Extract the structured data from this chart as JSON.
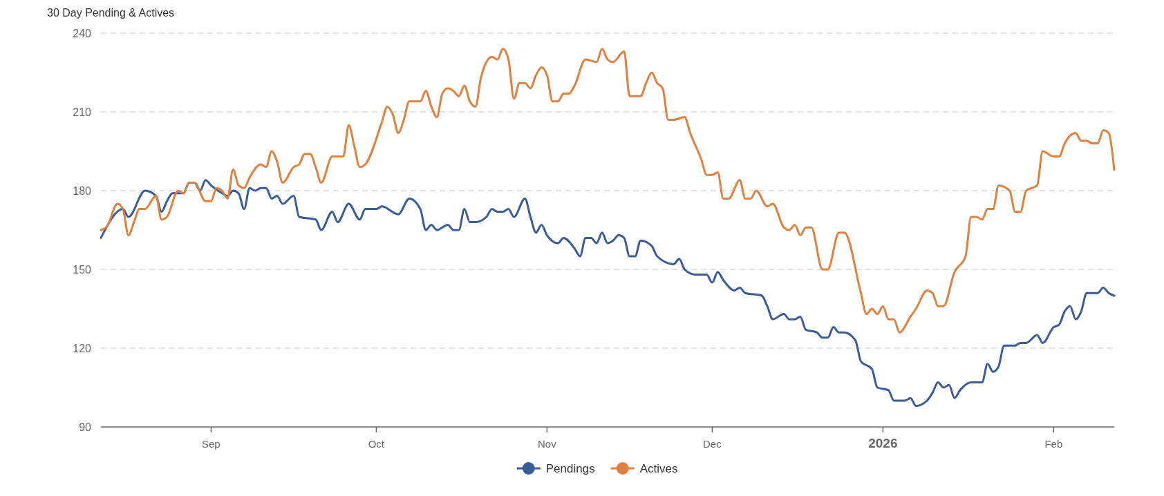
{
  "chart_data": {
    "type": "line",
    "title": "30 Day Pending & Actives",
    "xlim": [
      "2025-08-12",
      "2026-02-12"
    ],
    "xticks": [
      {
        "value": "2025-09-01",
        "label": "Sep"
      },
      {
        "value": "2025-10-01",
        "label": "Oct"
      },
      {
        "value": "2025-11-01",
        "label": "Nov"
      },
      {
        "value": "2025-12-01",
        "label": "Dec"
      },
      {
        "value": "2026-01-01",
        "label": "2026"
      },
      {
        "value": "2026-02-01",
        "label": "Feb"
      }
    ],
    "ylim": [
      90,
      240
    ],
    "yticks": [
      90,
      120,
      150,
      180,
      210,
      240
    ],
    "grid": "y",
    "legend": "bottom",
    "series": [
      {
        "name": "Pendings",
        "color": "#3a5a98",
        "x": [
          "2025-08-12",
          "2025-08-16",
          "2025-08-17",
          "2025-08-20",
          "2025-08-22",
          "2025-08-23",
          "2025-08-24",
          "2025-08-25",
          "2025-08-27",
          "2025-08-28",
          "2025-08-29",
          "2025-08-30",
          "2025-08-31",
          "2025-09-01",
          "2025-09-03",
          "2025-09-04",
          "2025-09-05",
          "2025-09-06",
          "2025-09-07",
          "2025-09-08",
          "2025-09-09",
          "2025-09-10",
          "2025-09-11",
          "2025-09-12",
          "2025-09-13",
          "2025-09-14",
          "2025-09-16",
          "2025-09-17",
          "2025-09-20",
          "2025-09-21",
          "2025-09-23",
          "2025-09-24",
          "2025-09-26",
          "2025-09-28",
          "2025-09-29",
          "2025-10-01",
          "2025-10-02",
          "2025-10-05",
          "2025-10-07",
          "2025-10-09",
          "2025-10-10",
          "2025-10-11",
          "2025-10-12",
          "2025-10-14",
          "2025-10-15",
          "2025-10-16",
          "2025-10-17",
          "2025-10-18",
          "2025-10-19",
          "2025-10-21",
          "2025-10-22",
          "2025-10-23",
          "2025-10-24",
          "2025-10-25",
          "2025-10-26",
          "2025-10-28",
          "2025-10-29",
          "2025-10-30",
          "2025-10-31",
          "2025-11-01",
          "2025-11-03",
          "2025-11-04",
          "2025-11-06",
          "2025-11-07",
          "2025-11-08",
          "2025-11-09",
          "2025-11-10",
          "2025-11-11",
          "2025-11-12",
          "2025-11-13",
          "2025-11-14",
          "2025-11-15",
          "2025-11-16",
          "2025-11-17",
          "2025-11-18",
          "2025-11-20",
          "2025-11-21",
          "2025-11-24",
          "2025-11-25",
          "2025-11-26",
          "2025-11-28",
          "2025-11-30",
          "2025-12-01",
          "2025-12-02",
          "2025-12-03",
          "2025-12-05",
          "2025-12-06",
          "2025-12-07",
          "2025-12-10",
          "2025-12-11",
          "2025-12-12",
          "2025-12-14",
          "2025-12-15",
          "2025-12-16",
          "2025-12-17",
          "2025-12-18",
          "2025-12-20",
          "2025-12-21",
          "2025-12-22",
          "2025-12-23",
          "2025-12-24",
          "2025-12-25",
          "2025-12-27",
          "2025-12-28",
          "2025-12-30",
          "2025-12-31",
          "2026-01-02",
          "2026-01-03",
          "2026-01-05",
          "2026-01-06",
          "2026-01-07",
          "2026-01-09",
          "2026-01-10",
          "2026-01-11",
          "2026-01-12",
          "2026-01-13",
          "2026-01-14",
          "2026-01-15",
          "2026-01-17",
          "2026-01-19",
          "2026-01-20",
          "2026-01-21",
          "2026-01-22",
          "2026-01-23",
          "2026-01-25",
          "2026-01-26",
          "2026-01-27",
          "2026-01-29",
          "2026-01-30",
          "2026-02-01",
          "2026-02-02",
          "2026-02-03",
          "2026-02-04",
          "2026-02-05",
          "2026-02-06",
          "2026-02-07",
          "2026-02-09",
          "2026-02-10",
          "2026-02-11",
          "2026-02-12"
        ],
        "values": [
          162,
          173,
          170,
          180,
          178,
          172,
          176,
          179,
          179,
          183,
          183,
          180,
          184,
          182,
          179,
          178,
          180,
          179,
          173,
          181,
          180,
          181,
          181,
          177,
          178,
          175,
          178,
          170,
          169,
          165,
          172,
          168,
          175,
          169,
          173,
          173,
          174,
          171,
          177,
          173,
          165,
          167,
          165,
          167,
          165,
          165,
          173,
          168,
          168,
          170,
          173,
          172,
          172,
          173,
          170,
          177,
          170,
          164,
          167,
          163,
          160,
          162,
          158,
          155,
          162,
          162,
          160,
          164,
          160,
          161,
          163,
          162,
          155,
          155,
          161,
          159,
          155,
          152,
          154,
          150,
          148,
          148,
          145,
          149,
          146,
          142,
          143,
          141,
          140,
          136,
          131,
          133,
          131,
          131,
          132,
          127,
          126,
          124,
          124,
          128,
          126,
          126,
          123,
          115,
          112,
          105,
          104,
          100,
          100,
          101,
          98,
          100,
          103,
          107,
          105,
          106,
          101,
          104,
          107,
          107,
          114,
          111,
          113,
          121,
          121,
          122,
          122,
          125,
          122,
          128,
          129,
          134,
          136,
          131,
          134,
          141,
          141,
          143,
          141,
          140
        ]
      },
      {
        "name": "Actives",
        "color": "#e0803e",
        "x": [
          "2025-08-12",
          "2025-08-13",
          "2025-08-15",
          "2025-08-16",
          "2025-08-17",
          "2025-08-18",
          "2025-08-19",
          "2025-08-20",
          "2025-08-22",
          "2025-08-23",
          "2025-08-24",
          "2025-08-26",
          "2025-08-27",
          "2025-08-28",
          "2025-08-29",
          "2025-08-31",
          "2025-09-01",
          "2025-09-02",
          "2025-09-03",
          "2025-09-04",
          "2025-09-05",
          "2025-09-06",
          "2025-09-07",
          "2025-09-08",
          "2025-09-10",
          "2025-09-11",
          "2025-09-12",
          "2025-09-13",
          "2025-09-14",
          "2025-09-16",
          "2025-09-17",
          "2025-09-18",
          "2025-09-19",
          "2025-09-20",
          "2025-09-21",
          "2025-09-23",
          "2025-09-25",
          "2025-09-26",
          "2025-09-27",
          "2025-09-28",
          "2025-09-29",
          "2025-10-02",
          "2025-10-03",
          "2025-10-04",
          "2025-10-05",
          "2025-10-06",
          "2025-10-07",
          "2025-10-09",
          "2025-10-10",
          "2025-10-11",
          "2025-10-12",
          "2025-10-13",
          "2025-10-14",
          "2025-10-15",
          "2025-10-16",
          "2025-10-17",
          "2025-10-18",
          "2025-10-19",
          "2025-10-20",
          "2025-10-21",
          "2025-10-22",
          "2025-10-23",
          "2025-10-24",
          "2025-10-25",
          "2025-10-26",
          "2025-10-27",
          "2025-10-28",
          "2025-10-29",
          "2025-10-30",
          "2025-10-31",
          "2025-11-01",
          "2025-11-02",
          "2025-11-03",
          "2025-11-04",
          "2025-11-05",
          "2025-11-06",
          "2025-11-08",
          "2025-11-10",
          "2025-11-11",
          "2025-11-12",
          "2025-11-13",
          "2025-11-15",
          "2025-11-16",
          "2025-11-18",
          "2025-11-19",
          "2025-11-20",
          "2025-11-21",
          "2025-11-22",
          "2025-11-23",
          "2025-11-24",
          "2025-11-26",
          "2025-11-27",
          "2025-11-29",
          "2025-11-30",
          "2025-12-01",
          "2025-12-02",
          "2025-12-03",
          "2025-12-04",
          "2025-12-06",
          "2025-12-07",
          "2025-12-08",
          "2025-12-09",
          "2025-12-11",
          "2025-12-12",
          "2025-12-14",
          "2025-12-15",
          "2025-12-16",
          "2025-12-17",
          "2025-12-18",
          "2025-12-19",
          "2025-12-21",
          "2025-12-22",
          "2025-12-24",
          "2025-12-25",
          "2025-12-28",
          "2025-12-29",
          "2025-12-30",
          "2025-12-31",
          "2026-01-01",
          "2026-01-02",
          "2026-01-03",
          "2026-01-04",
          "2026-01-06",
          "2026-01-07",
          "2026-01-09",
          "2026-01-10",
          "2026-01-11",
          "2026-01-12",
          "2026-01-14",
          "2026-01-16",
          "2026-01-17",
          "2026-01-18",
          "2026-01-19",
          "2026-01-20",
          "2026-01-21",
          "2026-01-22",
          "2026-01-24",
          "2026-01-25",
          "2026-01-26",
          "2026-01-27",
          "2026-01-29",
          "2026-01-30",
          "2026-02-01",
          "2026-02-02",
          "2026-02-03",
          "2026-02-05",
          "2026-02-06",
          "2026-02-07",
          "2026-02-08",
          "2026-02-09",
          "2026-02-10",
          "2026-02-11",
          "2026-02-12"
        ],
        "values": [
          165,
          166,
          175,
          173,
          163,
          168,
          173,
          173,
          178,
          169,
          170,
          180,
          179,
          183,
          183,
          176,
          176,
          181,
          180,
          177,
          188,
          182,
          181,
          185,
          190,
          189,
          195,
          191,
          183,
          189,
          190,
          194,
          194,
          189,
          183,
          193,
          193,
          205,
          197,
          189,
          190,
          206,
          212,
          209,
          202,
          207,
          214,
          214,
          218,
          212,
          208,
          217,
          219,
          218,
          216,
          220,
          214,
          212,
          223,
          229,
          231,
          230,
          234,
          230,
          215,
          221,
          221,
          219,
          224,
          227,
          224,
          214,
          214,
          217,
          217,
          220,
          230,
          229,
          234,
          230,
          229,
          233,
          216,
          216,
          221,
          225,
          221,
          219,
          207,
          207,
          208,
          202,
          192,
          186,
          186,
          187,
          177,
          177,
          184,
          177,
          177,
          180,
          174,
          175,
          166,
          165,
          167,
          163,
          166,
          166,
          150,
          150,
          164,
          164,
          141,
          133,
          135,
          133,
          136,
          131,
          131,
          126,
          132,
          135,
          142,
          141,
          136,
          136,
          149,
          155,
          170,
          170,
          169,
          173,
          173,
          182,
          180,
          172,
          172,
          180,
          182,
          195,
          193,
          193,
          198,
          202,
          199,
          199,
          198,
          198,
          203,
          202,
          188
        ]
      }
    ]
  }
}
